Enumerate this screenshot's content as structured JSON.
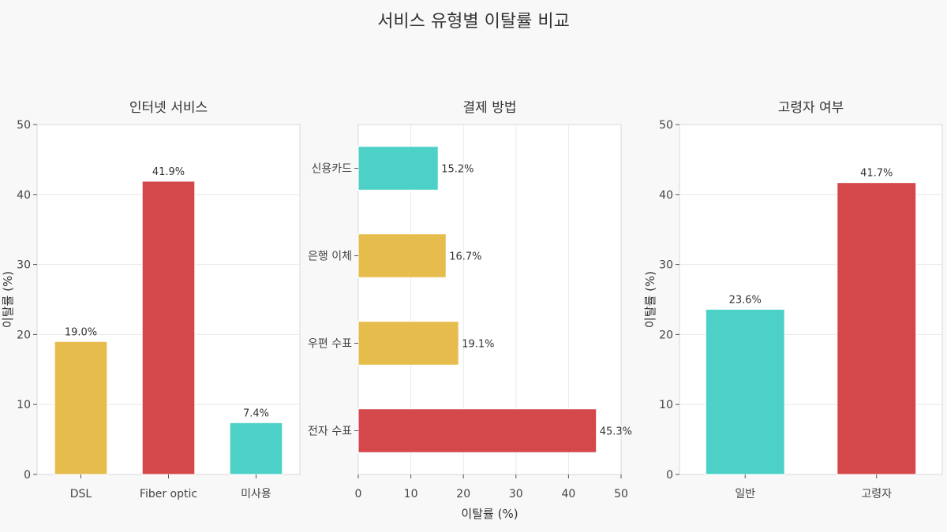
{
  "title": "서비스 유형별 이탈률 비교",
  "colors": {
    "red": "#d4474a",
    "yellow": "#e6bd4c",
    "teal": "#4dd0c6"
  },
  "chart_data": [
    {
      "type": "bar",
      "orientation": "vertical",
      "title": "인터넷 서비스",
      "xlabel": "",
      "ylabel": "이탈률 (%)",
      "ylim": [
        0,
        50
      ],
      "yticks": [
        0,
        10,
        20,
        30,
        40,
        50
      ],
      "grid": true,
      "categories": [
        "DSL",
        "Fiber optic",
        "미사용"
      ],
      "values": [
        19.0,
        41.9,
        7.4
      ],
      "labels": [
        "19.0%",
        "41.9%",
        "7.4%"
      ],
      "bar_colors": [
        "#e6bd4c",
        "#d4474a",
        "#4dd0c6"
      ]
    },
    {
      "type": "bar",
      "orientation": "horizontal",
      "title": "결제 방법",
      "xlabel": "이탈률 (%)",
      "ylabel": "",
      "xlim": [
        0,
        50
      ],
      "xticks": [
        0,
        10,
        20,
        30,
        40,
        50
      ],
      "grid": true,
      "categories": [
        "신용카드",
        "은행 이체",
        "우편 수표",
        "전자 수표"
      ],
      "values": [
        15.2,
        16.7,
        19.1,
        45.3
      ],
      "labels": [
        "15.2%",
        "16.7%",
        "19.1%",
        "45.3%"
      ],
      "bar_colors": [
        "#4dd0c6",
        "#e6bd4c",
        "#e6bd4c",
        "#d4474a"
      ]
    },
    {
      "type": "bar",
      "orientation": "vertical",
      "title": "고령자 여부",
      "xlabel": "",
      "ylabel": "이탈률 (%)",
      "ylim": [
        0,
        50
      ],
      "yticks": [
        0,
        10,
        20,
        30,
        40,
        50
      ],
      "grid": true,
      "categories": [
        "일반",
        "고령자"
      ],
      "values": [
        23.6,
        41.7
      ],
      "labels": [
        "23.6%",
        "41.7%"
      ],
      "bar_colors": [
        "#4dd0c6",
        "#d4474a"
      ]
    }
  ]
}
